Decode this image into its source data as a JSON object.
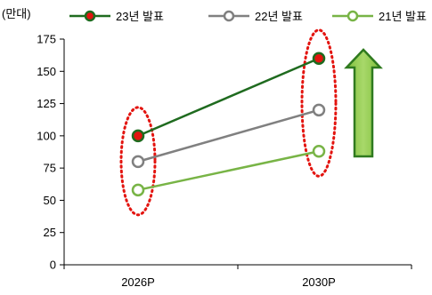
{
  "chart_data": {
    "type": "line",
    "unit_label": "(만대)",
    "categories": [
      "2026P",
      "2030P"
    ],
    "ylim": [
      0,
      175
    ],
    "yticks": [
      0,
      25,
      50,
      75,
      100,
      125,
      150,
      175
    ],
    "grid": false,
    "legend_position": "top",
    "series": [
      {
        "name": "23년 발표",
        "values": [
          100,
          160
        ],
        "color": "#1f6b1f",
        "marker_fill": "#e3140f",
        "filled": true
      },
      {
        "name": "22년 발표",
        "values": [
          80,
          120
        ],
        "color": "#808080",
        "marker_fill": "#ffffff",
        "filled": false
      },
      {
        "name": "21년 발표",
        "values": [
          58,
          88
        ],
        "color": "#78b446",
        "marker_fill": "#ffffff",
        "filled": false
      }
    ],
    "annotations": {
      "highlight_color": "#e3140f",
      "arrow_fill": "#7fbf3b",
      "arrow_stroke": "#2f7a1f"
    }
  }
}
